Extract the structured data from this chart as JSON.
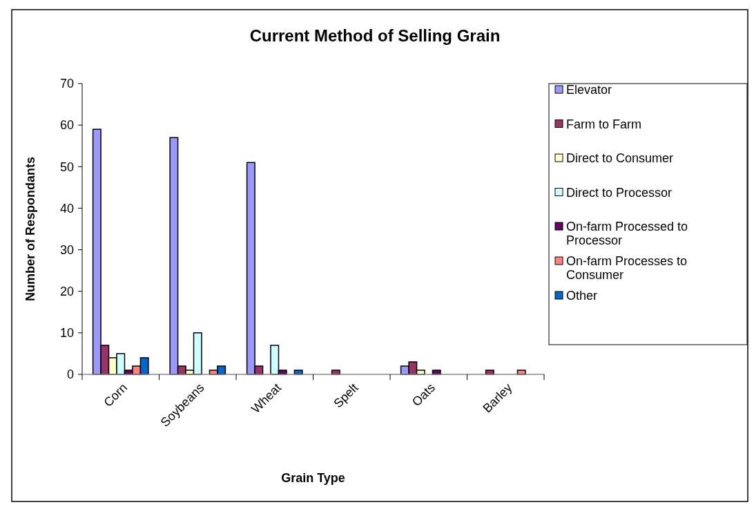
{
  "chart_data": {
    "type": "bar",
    "title": "Current Method of Selling Grain",
    "xlabel": "Grain Type",
    "ylabel": "Number of Respondants",
    "categories": [
      "Corn",
      "Soybeans",
      "Wheat",
      "Spelt",
      "Oats",
      "Barley"
    ],
    "series": [
      {
        "name": "Elevator",
        "color": "#9999ff",
        "values": [
          59,
          57,
          51,
          0,
          2,
          0
        ]
      },
      {
        "name": "Farm to Farm",
        "color": "#993366",
        "values": [
          7,
          2,
          2,
          1,
          3,
          1
        ]
      },
      {
        "name": "Direct to Consumer",
        "color": "#ffffcc",
        "values": [
          4,
          1,
          0,
          0,
          1,
          0
        ]
      },
      {
        "name": "Direct to Processor",
        "color": "#ccffff",
        "values": [
          5,
          10,
          7,
          0,
          0,
          0
        ]
      },
      {
        "name": "On-farm Processed to Processor",
        "color": "#660066",
        "values": [
          1,
          0,
          1,
          0,
          1,
          0
        ]
      },
      {
        "name": "On-farm Processes to Consumer",
        "color": "#ff8080",
        "values": [
          2,
          1,
          0,
          0,
          0,
          1
        ]
      },
      {
        "name": "Other",
        "color": "#0066cc",
        "values": [
          4,
          2,
          1,
          0,
          0,
          0
        ]
      }
    ],
    "ylim": [
      0,
      70
    ],
    "yticks": [
      0,
      10,
      20,
      30,
      40,
      50,
      60,
      70
    ],
    "grid": false,
    "legend": "right"
  }
}
